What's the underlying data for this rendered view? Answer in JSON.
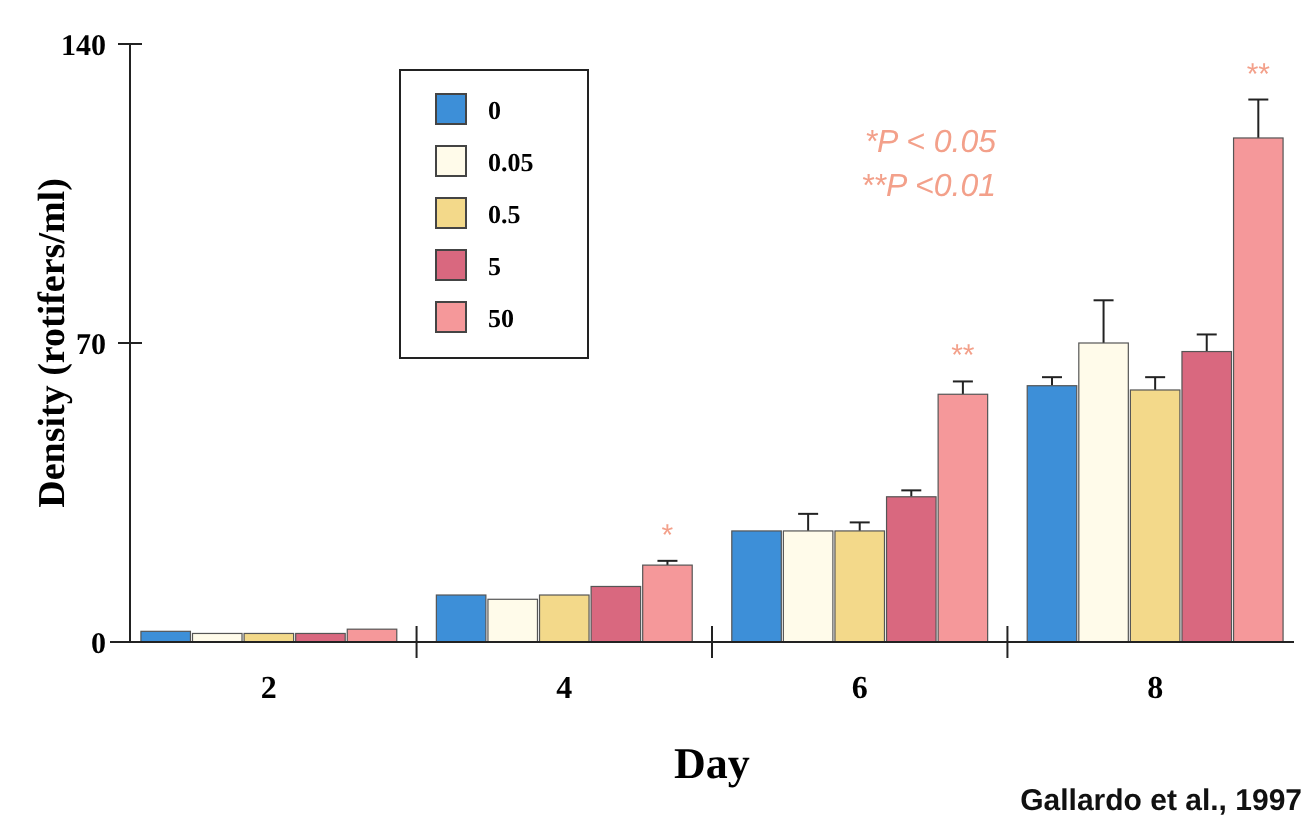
{
  "chart_data": {
    "type": "bar",
    "xlabel": "Day",
    "ylabel": "Density (rotifers/ml)",
    "categories": [
      "2",
      "4",
      "6",
      "8"
    ],
    "series": [
      {
        "name": "0",
        "color": "#3d8fd8",
        "values": [
          2.5,
          11,
          26,
          60
        ],
        "errors": [
          null,
          null,
          null,
          2
        ]
      },
      {
        "name": "0.05",
        "color": "#fffbea",
        "values": [
          2,
          10,
          26,
          70
        ],
        "errors": [
          null,
          null,
          4,
          10
        ]
      },
      {
        "name": "0.5",
        "color": "#f3d98a",
        "values": [
          2,
          11,
          26,
          59
        ],
        "errors": [
          null,
          null,
          2,
          3
        ]
      },
      {
        "name": "5",
        "color": "#d9687f",
        "values": [
          2,
          13,
          34,
          68
        ],
        "errors": [
          null,
          null,
          1.5,
          4
        ]
      },
      {
        "name": "50",
        "color": "#f5989a",
        "values": [
          3,
          18,
          58,
          118
        ],
        "errors": [
          null,
          1,
          3,
          9
        ]
      }
    ],
    "ylim": [
      0,
      140
    ],
    "yticks": [
      0,
      70,
      140
    ],
    "legend": "top left",
    "grid": false,
    "annotations": [
      "*",
      "**",
      "**",
      "*P < 0.05",
      "**P <0.01",
      "Gallardo et al., 1997"
    ]
  }
}
